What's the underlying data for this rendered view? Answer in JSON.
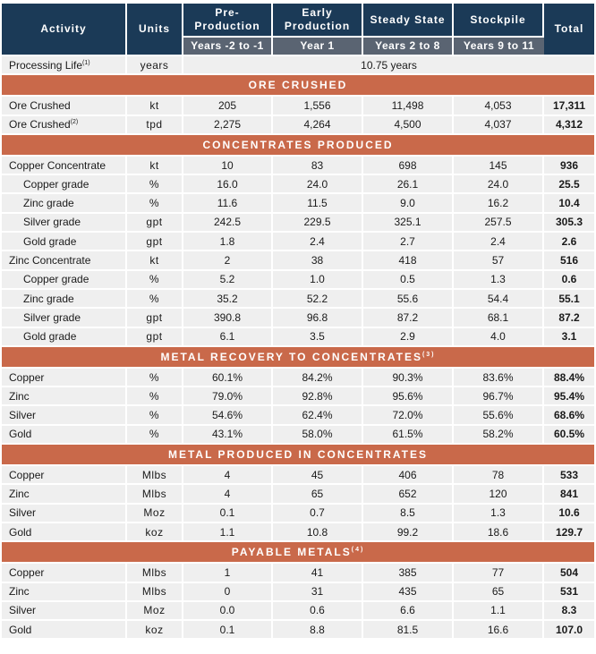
{
  "header": {
    "activity": "Activity",
    "units": "Units",
    "pre_production": "Pre-Production",
    "early_production": "Early Production",
    "steady_state": "Steady State",
    "stockpile": "Stockpile",
    "total": "Total",
    "pre_period": "Years -2 to -1",
    "early_period": "Year 1",
    "steady_period": "Years 2 to 8",
    "stock_period": "Years 9 to 11"
  },
  "processing_life": {
    "label": "Processing Life",
    "note": "(1)",
    "unit": "years",
    "value": "10.75 years"
  },
  "sections": [
    {
      "title": "ORE CRUSHED",
      "note": "",
      "rows": [
        {
          "label": "Ore Crushed",
          "note": "",
          "unit": "kt",
          "pre": "205",
          "early": "1,556",
          "steady": "11,498",
          "stock": "4,053",
          "total": "17,311"
        },
        {
          "label": "Ore Crushed",
          "note": "(2)",
          "unit": "tpd",
          "pre": "2,275",
          "early": "4,264",
          "steady": "4,500",
          "stock": "4,037",
          "total": "4,312"
        }
      ]
    },
    {
      "title": "CONCENTRATES PRODUCED",
      "note": "",
      "rows": [
        {
          "label": "Copper Concentrate",
          "note": "",
          "unit": "kt",
          "pre": "10",
          "early": "83",
          "steady": "698",
          "stock": "145",
          "total": "936"
        },
        {
          "label": "Copper grade",
          "note": "",
          "indent": true,
          "unit": "%",
          "pre": "16.0",
          "early": "24.0",
          "steady": "26.1",
          "stock": "24.0",
          "total": "25.5"
        },
        {
          "label": "Zinc grade",
          "note": "",
          "indent": true,
          "unit": "%",
          "pre": "11.6",
          "early": "11.5",
          "steady": "9.0",
          "stock": "16.2",
          "total": "10.4"
        },
        {
          "label": "Silver grade",
          "note": "",
          "indent": true,
          "unit": "gpt",
          "pre": "242.5",
          "early": "229.5",
          "steady": "325.1",
          "stock": "257.5",
          "total": "305.3"
        },
        {
          "label": "Gold grade",
          "note": "",
          "indent": true,
          "unit": "gpt",
          "pre": "1.8",
          "early": "2.4",
          "steady": "2.7",
          "stock": "2.4",
          "total": "2.6"
        },
        {
          "label": "Zinc Concentrate",
          "note": "",
          "unit": "kt",
          "pre": "2",
          "early": "38",
          "steady": "418",
          "stock": "57",
          "total": "516"
        },
        {
          "label": "Copper grade",
          "note": "",
          "indent": true,
          "unit": "%",
          "pre": "5.2",
          "early": "1.0",
          "steady": "0.5",
          "stock": "1.3",
          "total": "0.6"
        },
        {
          "label": "Zinc grade",
          "note": "",
          "indent": true,
          "unit": "%",
          "pre": "35.2",
          "early": "52.2",
          "steady": "55.6",
          "stock": "54.4",
          "total": "55.1"
        },
        {
          "label": "Silver grade",
          "note": "",
          "indent": true,
          "unit": "gpt",
          "pre": "390.8",
          "early": "96.8",
          "steady": "87.2",
          "stock": "68.1",
          "total": "87.2"
        },
        {
          "label": "Gold grade",
          "note": "",
          "indent": true,
          "unit": "gpt",
          "pre": "6.1",
          "early": "3.5",
          "steady": "2.9",
          "stock": "4.0",
          "total": "3.1"
        }
      ]
    },
    {
      "title": "METAL RECOVERY TO CONCENTRATES",
      "note": "(3)",
      "rows": [
        {
          "label": "Copper",
          "note": "",
          "unit": "%",
          "pre": "60.1%",
          "early": "84.2%",
          "steady": "90.3%",
          "stock": "83.6%",
          "total": "88.4%"
        },
        {
          "label": "Zinc",
          "note": "",
          "unit": "%",
          "pre": "79.0%",
          "early": "92.8%",
          "steady": "95.6%",
          "stock": "96.7%",
          "total": "95.4%"
        },
        {
          "label": "Silver",
          "note": "",
          "unit": "%",
          "pre": "54.6%",
          "early": "62.4%",
          "steady": "72.0%",
          "stock": "55.6%",
          "total": "68.6%"
        },
        {
          "label": "Gold",
          "note": "",
          "unit": "%",
          "pre": "43.1%",
          "early": "58.0%",
          "steady": "61.5%",
          "stock": "58.2%",
          "total": "60.5%"
        }
      ]
    },
    {
      "title": "METAL PRODUCED IN CONCENTRATES",
      "note": "",
      "rows": [
        {
          "label": "Copper",
          "note": "",
          "unit": "Mlbs",
          "pre": "4",
          "early": "45",
          "steady": "406",
          "stock": "78",
          "total": "533"
        },
        {
          "label": "Zinc",
          "note": "",
          "unit": "Mlbs",
          "pre": "4",
          "early": "65",
          "steady": "652",
          "stock": "120",
          "total": "841"
        },
        {
          "label": "Silver",
          "note": "",
          "unit": "Moz",
          "pre": "0.1",
          "early": "0.7",
          "steady": "8.5",
          "stock": "1.3",
          "total": "10.6"
        },
        {
          "label": "Gold",
          "note": "",
          "unit": "koz",
          "pre": "1.1",
          "early": "10.8",
          "steady": "99.2",
          "stock": "18.6",
          "total": "129.7"
        }
      ]
    },
    {
      "title": "PAYABLE METALS",
      "note": "(4)",
      "rows": [
        {
          "label": "Copper",
          "note": "",
          "unit": "Mlbs",
          "pre": "1",
          "early": "41",
          "steady": "385",
          "stock": "77",
          "total": "504"
        },
        {
          "label": "Zinc",
          "note": "",
          "unit": "Mlbs",
          "pre": "0",
          "early": "31",
          "steady": "435",
          "stock": "65",
          "total": "531"
        },
        {
          "label": "Silver",
          "note": "",
          "unit": "Moz",
          "pre": "0.0",
          "early": "0.6",
          "steady": "6.6",
          "stock": "1.1",
          "total": "8.3"
        },
        {
          "label": "Gold",
          "note": "",
          "unit": "koz",
          "pre": "0.1",
          "early": "8.8",
          "steady": "81.5",
          "stock": "16.6",
          "total": "107.0"
        }
      ]
    }
  ]
}
